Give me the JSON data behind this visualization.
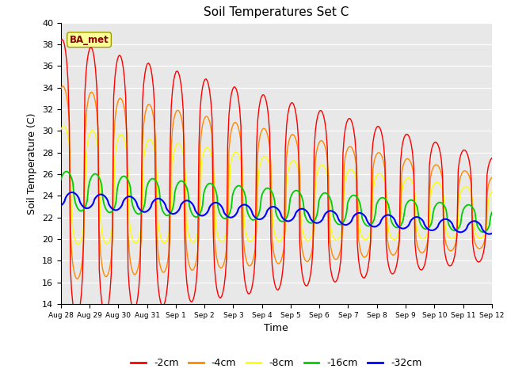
{
  "title": "Soil Temperatures Set C",
  "xlabel": "Time",
  "ylabel": "Soil Temperature (C)",
  "ylim": [
    14,
    40
  ],
  "yticks": [
    14,
    16,
    18,
    20,
    22,
    24,
    26,
    28,
    30,
    32,
    34,
    36,
    38,
    40
  ],
  "colors": {
    "-2cm": "#ff0000",
    "-4cm": "#ff8800",
    "-8cm": "#ffff00",
    "-16cm": "#00cc00",
    "-32cm": "#0000ff"
  },
  "annotation_text": "BA_met",
  "background_color": "#e8e8e8",
  "tick_labels": [
    "Aug 28",
    "Aug 29",
    "Aug 30",
    "Aug 31",
    "Sep 1",
    "Sep 2",
    "Sep 3",
    "Sep 4",
    "Sep 5",
    "Sep 6",
    "Sep 7",
    "Sep 8",
    "Sep 9",
    "Sep 10",
    "Sep 11",
    "Sep 12"
  ],
  "linewidth": 1.0
}
